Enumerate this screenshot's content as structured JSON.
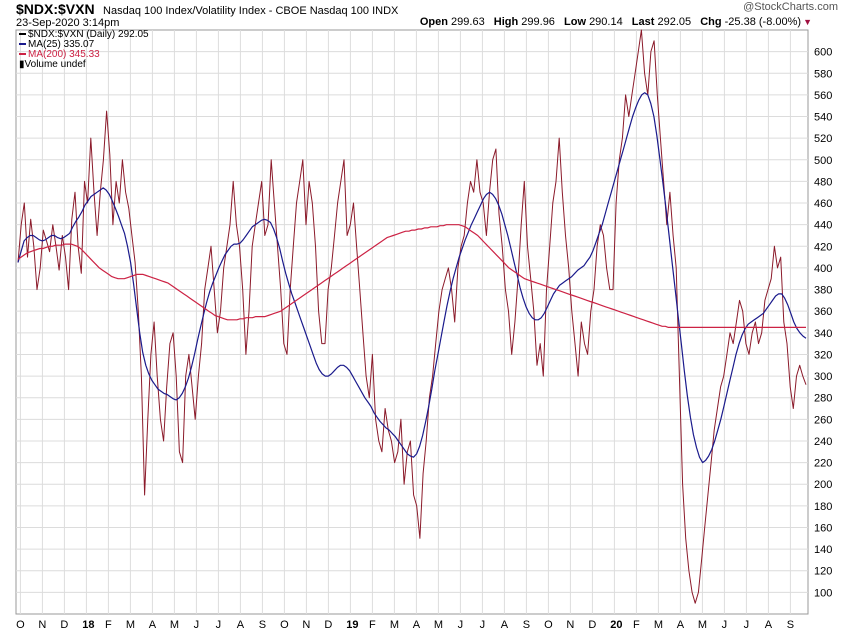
{
  "header": {
    "symbol": "$NDX:$VXN",
    "description": "Nasdaq 100 Index/Volatility Index - CBOE Nasdaq 100  INDX",
    "date": "23-Sep-2020 3:14pm",
    "brand": "@StockCharts.com",
    "open_label": "Open",
    "open_value": "299.63",
    "high_label": "High",
    "high_value": "299.96",
    "low_label": "Low",
    "low_value": "290.14",
    "last_label": "Last",
    "last_value": "292.05",
    "chg_label": "Chg",
    "chg_value": "-25.38 (-8.00%)"
  },
  "legend": {
    "price": "$NDX:$VXN (Daily) 292.05",
    "ma25": "MA(25) 335.07",
    "ma200": "MA(200) 345.33",
    "volume": "Volume undef"
  },
  "colors": {
    "price": "#8b1a2a",
    "ma25": "#1a1a8c",
    "ma200": "#cc2244",
    "grid": "#dcdcdc",
    "brand_accent": "#a01040"
  },
  "chart_data": {
    "type": "line",
    "title": "$NDX:$VXN Nasdaq 100 Index/Volatility Index - CBOE Nasdaq 100 INDX",
    "xlabel": "",
    "ylabel": "",
    "ylim": [
      80,
      620
    ],
    "y_ticks": [
      100,
      120,
      140,
      160,
      180,
      200,
      220,
      240,
      260,
      280,
      300,
      320,
      340,
      360,
      380,
      400,
      420,
      440,
      460,
      480,
      500,
      520,
      540,
      560,
      580,
      600
    ],
    "x_tick_labels": [
      "O",
      "N",
      "D",
      "18",
      "F",
      "M",
      "A",
      "M",
      "J",
      "J",
      "A",
      "S",
      "O",
      "N",
      "D",
      "19",
      "F",
      "M",
      "A",
      "M",
      "J",
      "J",
      "A",
      "S",
      "O",
      "N",
      "D",
      "20",
      "F",
      "M",
      "A",
      "M",
      "J",
      "J",
      "A",
      "S"
    ],
    "x_tick_bold": [
      "18",
      "19",
      "20"
    ],
    "series": [
      {
        "name": "$NDX:$VXN (Daily)",
        "values": [
          405,
          440,
          460,
          410,
          445,
          420,
          380,
          400,
          435,
          425,
          415,
          440,
          420,
          398,
          430,
          410,
          380,
          445,
          470,
          420,
          395,
          480,
          460,
          520,
          470,
          430,
          470,
          500,
          545,
          505,
          440,
          480,
          460,
          500,
          470,
          455,
          430,
          405,
          360,
          300,
          190,
          260,
          320,
          350,
          300,
          260,
          240,
          290,
          330,
          340,
          300,
          230,
          220,
          300,
          320,
          290,
          260,
          300,
          330,
          380,
          400,
          420,
          380,
          340,
          360,
          400,
          420,
          440,
          480,
          440,
          420,
          380,
          320,
          360,
          420,
          440,
          460,
          480,
          430,
          440,
          500,
          460,
          420,
          380,
          330,
          320,
          380,
          420,
          460,
          480,
          500,
          440,
          480,
          460,
          420,
          360,
          330,
          330,
          380,
          400,
          430,
          460,
          480,
          500,
          430,
          440,
          460,
          420,
          380,
          340,
          300,
          280,
          320,
          260,
          240,
          230,
          270,
          250,
          240,
          220,
          230,
          260,
          200,
          230,
          240,
          190,
          180,
          150,
          210,
          240,
          280,
          300,
          330,
          360,
          380,
          390,
          400,
          380,
          350,
          400,
          420,
          430,
          460,
          480,
          470,
          500,
          470,
          460,
          430,
          470,
          500,
          510,
          450,
          420,
          380,
          360,
          320,
          350,
          390,
          440,
          480,
          420,
          390,
          360,
          310,
          330,
          300,
          380,
          420,
          460,
          480,
          520,
          470,
          430,
          400,
          360,
          330,
          300,
          350,
          330,
          320,
          360,
          380,
          420,
          440,
          430,
          400,
          380,
          380,
          460,
          500,
          520,
          560,
          540,
          560,
          580,
          600,
          620,
          580,
          560,
          600,
          610,
          560,
          520,
          480,
          440,
          470,
          430,
          400,
          300,
          200,
          150,
          120,
          100,
          90,
          100,
          130,
          160,
          190,
          220,
          250,
          270,
          290,
          300,
          320,
          340,
          330,
          350,
          370,
          360,
          330,
          320,
          340,
          350,
          330,
          340,
          370,
          380,
          390,
          420,
          400,
          410,
          350,
          330,
          290,
          270,
          300,
          310,
          300,
          292
        ]
      },
      {
        "name": "MA(25)",
        "values": [
          405,
          415,
          425,
          428,
          430,
          430,
          428,
          426,
          425,
          426,
          428,
          430,
          430,
          428,
          427,
          428,
          430,
          432,
          438,
          443,
          447,
          452,
          458,
          462,
          466,
          468,
          470,
          472,
          474,
          472,
          468,
          462,
          455,
          448,
          440,
          432,
          420,
          405,
          385,
          362,
          340,
          322,
          310,
          302,
          296,
          292,
          288,
          286,
          284,
          283,
          281,
          279,
          278,
          280,
          284,
          290,
          298,
          308,
          320,
          333,
          345,
          357,
          368,
          378,
          386,
          393,
          400,
          406,
          412,
          416,
          420,
          422,
          422,
          423,
          426,
          430,
          434,
          438,
          440,
          442,
          444,
          445,
          444,
          442,
          436,
          428,
          418,
          406,
          395,
          385,
          376,
          368,
          360,
          352,
          344,
          336,
          328,
          320,
          312,
          306,
          302,
          300,
          300,
          302,
          305,
          308,
          310,
          310,
          308,
          305,
          300,
          295,
          290,
          285,
          280,
          276,
          272,
          266,
          262,
          258,
          255,
          252,
          250,
          247,
          244,
          240,
          236,
          232,
          228,
          226,
          225,
          228,
          235,
          245,
          258,
          272,
          288,
          305,
          320,
          335,
          350,
          365,
          378,
          390,
          400,
          410,
          418,
          426,
          433,
          440,
          446,
          452,
          458,
          464,
          468,
          470,
          468,
          464,
          458,
          450,
          440,
          430,
          418,
          406,
          394,
          382,
          372,
          364,
          358,
          354,
          352,
          352,
          354,
          358,
          364,
          370,
          376,
          380,
          384,
          386,
          388,
          390,
          392,
          395,
          398,
          400,
          402,
          406,
          410,
          416,
          424,
          432,
          440,
          450,
          460,
          470,
          480,
          490,
          500,
          510,
          520,
          530,
          540,
          548,
          555,
          560,
          562,
          560,
          552,
          540,
          522,
          500,
          478,
          455,
          430,
          405,
          380,
          355,
          330,
          305,
          282,
          262,
          246,
          234,
          225,
          220,
          222,
          226,
          232,
          240,
          250,
          260,
          272,
          284,
          296,
          308,
          320,
          330,
          338,
          344,
          348,
          350,
          352,
          354,
          356,
          358,
          362,
          366,
          370,
          374,
          376,
          376,
          372,
          366,
          358,
          350,
          344,
          340,
          337,
          335
        ]
      },
      {
        "name": "MA(200)",
        "values": [
          408,
          410,
          412,
          414,
          415,
          416,
          417,
          418,
          418,
          419,
          420,
          420,
          421,
          421,
          421,
          422,
          422,
          422,
          421,
          420,
          418,
          415,
          412,
          409,
          406,
          403,
          400,
          398,
          396,
          394,
          392,
          391,
          390,
          390,
          390,
          391,
          392,
          393,
          394,
          394,
          394,
          393,
          392,
          391,
          390,
          389,
          388,
          387,
          386,
          384,
          382,
          380,
          378,
          376,
          374,
          372,
          370,
          368,
          366,
          364,
          362,
          360,
          358,
          356,
          355,
          354,
          353,
          352,
          352,
          352,
          352,
          353,
          353,
          354,
          354,
          354,
          355,
          355,
          355,
          355,
          356,
          357,
          358,
          359,
          360,
          362,
          364,
          366,
          368,
          370,
          372,
          374,
          376,
          378,
          380,
          382,
          384,
          386,
          388,
          390,
          392,
          394,
          396,
          398,
          400,
          402,
          404,
          406,
          408,
          410,
          412,
          414,
          416,
          418,
          420,
          422,
          424,
          426,
          428,
          429,
          430,
          431,
          432,
          433,
          434,
          434,
          435,
          435,
          436,
          436,
          437,
          437,
          438,
          438,
          438,
          439,
          439,
          440,
          440,
          440,
          440,
          440,
          439,
          438,
          436,
          434,
          432,
          430,
          427,
          424,
          421,
          418,
          415,
          412,
          409,
          406,
          403,
          400,
          398,
          396,
          394,
          392,
          390,
          389,
          388,
          387,
          386,
          385,
          384,
          383,
          382,
          381,
          380,
          379,
          378,
          377,
          376,
          375,
          374,
          373,
          372,
          371,
          370,
          369,
          368,
          367,
          366,
          365,
          364,
          363,
          362,
          361,
          360,
          359,
          358,
          357,
          356,
          355,
          354,
          353,
          352,
          351,
          350,
          349,
          348,
          347,
          346,
          346,
          345,
          345,
          345,
          345,
          345,
          345,
          345,
          345,
          345,
          345,
          345,
          345,
          345,
          345,
          345,
          345,
          345,
          345,
          345,
          345,
          345,
          345,
          345,
          345,
          345,
          345,
          345,
          345,
          345,
          345,
          345,
          345,
          345,
          345,
          345,
          345,
          345,
          345,
          345,
          345,
          345,
          345,
          345,
          345,
          345
        ]
      }
    ]
  }
}
